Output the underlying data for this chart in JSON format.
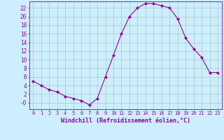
{
  "x": [
    0,
    1,
    2,
    3,
    4,
    5,
    6,
    7,
    8,
    9,
    10,
    11,
    12,
    13,
    14,
    15,
    16,
    17,
    18,
    19,
    20,
    21,
    22,
    23
  ],
  "y": [
    5,
    4,
    3,
    2.5,
    1.5,
    1,
    0.5,
    -0.5,
    1,
    6,
    11,
    16,
    20,
    22,
    23,
    23,
    22.5,
    22,
    19.5,
    15,
    12.5,
    10.5,
    7,
    7
  ],
  "line_color": "#990099",
  "marker": "D",
  "marker_size": 2.0,
  "bg_color": "#cceeff",
  "grid_color": "#aaccbb",
  "xlabel": "Windchill (Refroidissement éolien,°C)",
  "ylabel_ticks": [
    0,
    2,
    4,
    6,
    8,
    10,
    12,
    14,
    16,
    18,
    20,
    22
  ],
  "ylim": [
    -1.5,
    23.5
  ],
  "xlim": [
    -0.5,
    23.5
  ],
  "xlabel_color": "#990099",
  "tick_label_color": "#990099",
  "tick_color": "#990099",
  "xtick_fontsize": 5.0,
  "ytick_fontsize": 5.5,
  "xlabel_fontsize": 6.0
}
